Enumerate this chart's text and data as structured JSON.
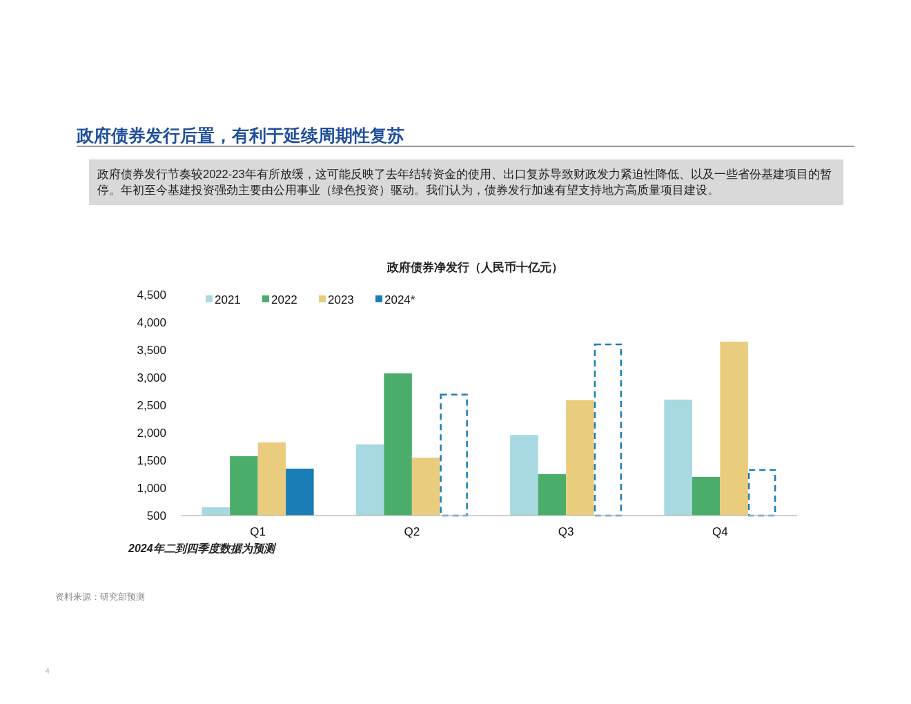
{
  "chart_data": {
    "type": "bar",
    "title": "政府债券净发行（人民币十亿元）",
    "categories": [
      "Q1",
      "Q2",
      "Q3",
      "Q4"
    ],
    "series": [
      {
        "name": "2021",
        "color": "#a8d8e2",
        "values": [
          650,
          1790,
          1960,
          2600
        ]
      },
      {
        "name": "2022",
        "color": "#4aae6a",
        "values": [
          1575,
          3075,
          1250,
          1200
        ]
      },
      {
        "name": "2023",
        "color": "#e9cc7e",
        "values": [
          1825,
          1550,
          2590,
          3650
        ]
      },
      {
        "name": "2024*",
        "color": "#1a7db5",
        "values": [
          1350,
          2690,
          3600,
          1325
        ],
        "line_style": [
          "solid",
          "dashed",
          "dashed",
          "dashed"
        ]
      }
    ],
    "ylim": [
      500,
      4500
    ],
    "yticks": [
      {
        "value": 500,
        "label": "500"
      },
      {
        "value": 1000,
        "label": "1,000"
      },
      {
        "value": 1500,
        "label": "1,500"
      },
      {
        "value": 2000,
        "label": "2,000"
      },
      {
        "value": 2500,
        "label": "2,500"
      },
      {
        "value": 3000,
        "label": "3,000"
      },
      {
        "value": 3500,
        "label": "3,500"
      },
      {
        "value": 4000,
        "label": "4,000"
      },
      {
        "value": 4500,
        "label": "4,500"
      }
    ],
    "grid": false,
    "legend": "top left",
    "annotations": [
      "政府债券发行后置，有利于延续周期性复苏",
      "政府债券发行节奏较2022-23年有所放缓，这可能反映了去年结转资金的使用、出口复苏导致财政发力紧迫性降低、以及一些省份基建项目的暂停。年初至今基建投资强劲主要由公用事业（绿色投资）驱动。我们认为，债券发行加速有望支持地方高质量项目建设。",
      "2024年二到四季度数据为预测",
      "资料来源：研究部预测",
      "4"
    ]
  }
}
